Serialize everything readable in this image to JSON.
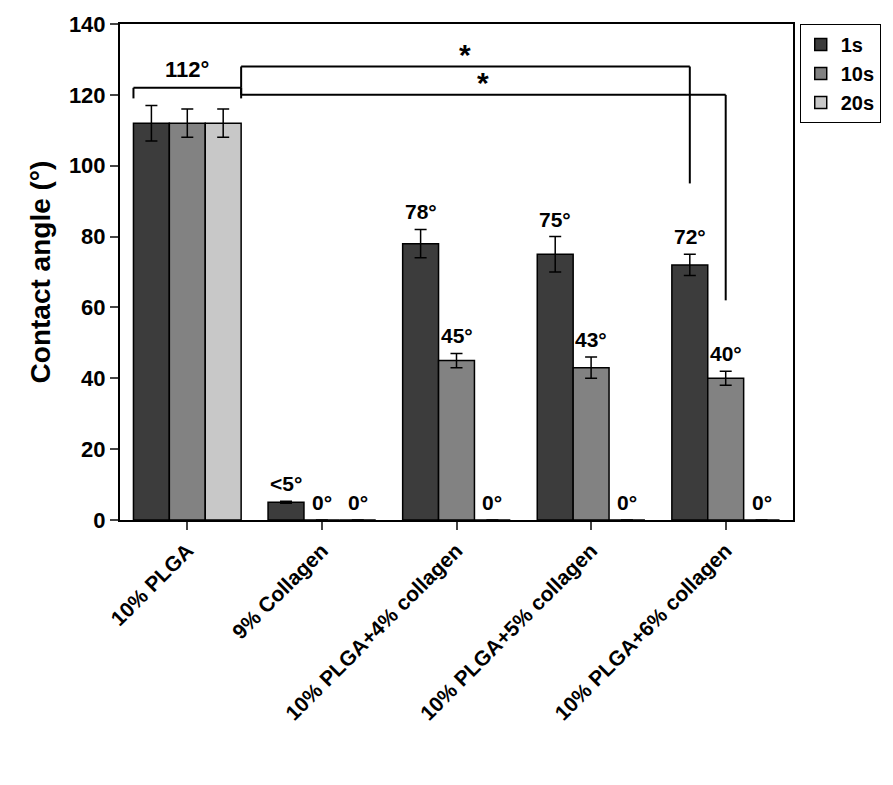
{
  "chart_data": {
    "type": "bar",
    "y_label": "Contact angle (°)",
    "categories": [
      "10% PLGA",
      "9% Collagen",
      "10% PLGA+4% collagen",
      "10% PLGA+5% collagen",
      "10% PLGA+6% collagen"
    ],
    "series": [
      {
        "name": "1s",
        "color": "#3c3c3c",
        "values": [
          112,
          5,
          78,
          75,
          72
        ],
        "errors": [
          5,
          0.3,
          4,
          5,
          3
        ],
        "value_labels": [
          null,
          "<5°",
          "78°",
          "75°",
          "72°"
        ]
      },
      {
        "name": "10s",
        "color": "#828282",
        "values": [
          112,
          0,
          45,
          43,
          40
        ],
        "errors": [
          4,
          0,
          2,
          3,
          2
        ],
        "value_labels": [
          null,
          "0°",
          "45°",
          "43°",
          "40°"
        ]
      },
      {
        "name": "20s",
        "color": "#c8c8c8",
        "values": [
          112,
          0,
          0,
          0,
          0
        ],
        "errors": [
          4,
          0,
          0,
          0,
          0
        ],
        "value_labels": [
          null,
          "0°",
          "0°",
          "0°",
          "0°"
        ]
      }
    ],
    "annotations": [
      {
        "text": "112°",
        "category": 0
      },
      {
        "text": "*",
        "from": 0,
        "to": 4,
        "series": "1s"
      },
      {
        "text": "*",
        "from": 0,
        "to": 4,
        "series": "10s"
      }
    ],
    "ylim": [
      0,
      140
    ],
    "yticks": [
      0,
      20,
      40,
      60,
      80,
      100,
      120,
      140
    ],
    "grid": false,
    "legend": "top right",
    "data_labels": true
  }
}
